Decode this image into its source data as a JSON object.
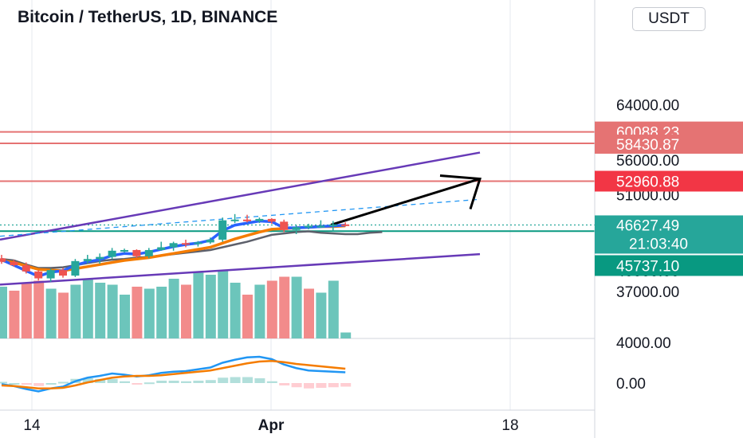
{
  "header": {
    "title": "Bitcoin / TetherUS, 1D, BINANCE"
  },
  "currency_button": "USDT",
  "colors": {
    "up": "#26a69a",
    "down": "#ef5350",
    "ema_fast": "#2962ff",
    "ema_slow": "#f57c00",
    "slow_line": "#5d606b",
    "channel": "#673ab7",
    "level": "#e57373",
    "level_strong": "#f23645",
    "price_line": "#089981"
  },
  "chart_data": {
    "type": "candlestick",
    "price_axis": {
      "ticks": [
        "64000.00",
        "56000.00",
        "51000.00",
        "40000.00",
        "37000.00"
      ],
      "tick_values": [
        64000,
        56000,
        51000,
        40000,
        37000
      ]
    },
    "volume_axis_tick": "4000.00",
    "macd_axis_tick": "0.00",
    "time_axis": {
      "ticks": [
        "14",
        "Apr",
        "18"
      ]
    },
    "price_tags": [
      {
        "label": "60088.23",
        "value": 60088.23,
        "style": "level"
      },
      {
        "label": "58430.87",
        "value": 58430.87,
        "style": "level"
      },
      {
        "label": "52960.88",
        "value": 52960.88,
        "style": "strong"
      },
      {
        "label": "46627.49",
        "value": 46627.49,
        "style": "current"
      },
      {
        "label": "21:03:40",
        "value": 46627.49,
        "style": "countdown"
      },
      {
        "label": "45737.10",
        "value": 45737.1,
        "style": "line"
      }
    ],
    "horizontal_levels": [
      60088.23,
      58430.87,
      52960.88,
      45737.1
    ],
    "candles": [
      {
        "o": 41800,
        "h": 42300,
        "l": 41000,
        "c": 41300
      },
      {
        "o": 41300,
        "h": 41600,
        "l": 40600,
        "c": 40800
      },
      {
        "o": 40800,
        "h": 41200,
        "l": 39600,
        "c": 39900
      },
      {
        "o": 39900,
        "h": 40100,
        "l": 38600,
        "c": 38900
      },
      {
        "o": 38900,
        "h": 40300,
        "l": 38400,
        "c": 40100
      },
      {
        "o": 40100,
        "h": 40400,
        "l": 39000,
        "c": 39300
      },
      {
        "o": 39300,
        "h": 41700,
        "l": 39100,
        "c": 41400
      },
      {
        "o": 41400,
        "h": 42300,
        "l": 41100,
        "c": 41700
      },
      {
        "o": 41700,
        "h": 42500,
        "l": 41000,
        "c": 42000
      },
      {
        "o": 42000,
        "h": 43300,
        "l": 41700,
        "c": 42900
      },
      {
        "o": 42900,
        "h": 43200,
        "l": 42600,
        "c": 43000
      },
      {
        "o": 43000,
        "h": 43100,
        "l": 41800,
        "c": 42100
      },
      {
        "o": 42100,
        "h": 43300,
        "l": 41800,
        "c": 43000
      },
      {
        "o": 43000,
        "h": 44200,
        "l": 42900,
        "c": 43400
      },
      {
        "o": 43400,
        "h": 44200,
        "l": 42900,
        "c": 44000
      },
      {
        "o": 44000,
        "h": 44500,
        "l": 43400,
        "c": 43900
      },
      {
        "o": 43900,
        "h": 44300,
        "l": 43500,
        "c": 44100
      },
      {
        "o": 44100,
        "h": 44800,
        "l": 43900,
        "c": 44500
      },
      {
        "o": 44500,
        "h": 47700,
        "l": 44200,
        "c": 47300
      },
      {
        "o": 47300,
        "h": 48200,
        "l": 46900,
        "c": 47400
      },
      {
        "o": 47400,
        "h": 48100,
        "l": 47000,
        "c": 47200
      },
      {
        "o": 47200,
        "h": 47700,
        "l": 46900,
        "c": 47500
      },
      {
        "o": 47500,
        "h": 47600,
        "l": 46800,
        "c": 47100
      },
      {
        "o": 47100,
        "h": 47400,
        "l": 45600,
        "c": 45900
      },
      {
        "o": 45900,
        "h": 46600,
        "l": 45300,
        "c": 46300
      },
      {
        "o": 46300,
        "h": 46800,
        "l": 46000,
        "c": 46500
      },
      {
        "o": 46500,
        "h": 47300,
        "l": 46200,
        "c": 46500
      },
      {
        "o": 46500,
        "h": 47200,
        "l": 45700,
        "c": 46700
      },
      {
        "o": 46700,
        "h": 47000,
        "l": 46400,
        "c": 46627.49
      }
    ],
    "volume": [
      2600,
      2400,
      2800,
      2900,
      2500,
      2300,
      2700,
      3000,
      2800,
      2700,
      2200,
      2600,
      2500,
      2600,
      3000,
      2700,
      3300,
      3200,
      3400,
      2800,
      2200,
      2700,
      2900,
      3100,
      3100,
      2500,
      2300,
      2900,
      300
    ],
    "volume_up": [
      true,
      false,
      false,
      false,
      true,
      false,
      true,
      true,
      true,
      true,
      true,
      false,
      true,
      true,
      true,
      false,
      true,
      true,
      true,
      true,
      false,
      true,
      false,
      false,
      true,
      false,
      true,
      true,
      true
    ],
    "ema_fast": [
      41600,
      40800,
      40000,
      39200,
      39800,
      40000,
      40800,
      41300,
      41600,
      42200,
      42500,
      42400,
      42700,
      43100,
      43500,
      43800,
      44000,
      44400,
      45800,
      46600,
      46900,
      47200,
      47100,
      46200,
      46200,
      46300,
      46400,
      46500,
      46600
    ],
    "ema_slow": [
      41500,
      41200,
      40700,
      40200,
      40100,
      40000,
      40300,
      40600,
      40900,
      41200,
      41500,
      41700,
      41900,
      42200,
      42500,
      42800,
      43100,
      43400,
      44000,
      44600,
      45100,
      45600,
      46000,
      46100,
      46200,
      46300,
      46400,
      46400,
      46500
    ],
    "slow_line": [
      41700,
      41500,
      40900,
      40400,
      40400,
      40500,
      40800,
      41100,
      41400,
      41600,
      41700,
      41900,
      42000,
      42200,
      42400,
      42600,
      42800,
      43000,
      43400,
      43800,
      44200,
      44700,
      45200,
      45400,
      45600,
      45700,
      45500,
      45400,
      45300,
      45300,
      45500,
      45600
    ],
    "macd": [
      -0.2,
      -0.5,
      -1.0,
      -1.4,
      -0.9,
      -0.6,
      0.3,
      0.9,
      1.2,
      1.6,
      1.4,
      1.1,
      1.3,
      1.7,
      1.9,
      2.0,
      2.3,
      2.6,
      3.4,
      3.9,
      4.3,
      4.4,
      4.0,
      3.1,
      2.5,
      2.1,
      2.0,
      1.9,
      1.8
    ],
    "macd_signal": [
      -0.4,
      -0.5,
      -0.7,
      -0.9,
      -0.9,
      -0.8,
      -0.4,
      0.1,
      0.5,
      0.9,
      1.1,
      1.2,
      1.2,
      1.3,
      1.5,
      1.7,
      1.9,
      2.1,
      2.5,
      2.9,
      3.3,
      3.6,
      3.7,
      3.5,
      3.2,
      3.0,
      2.8,
      2.6,
      2.4
    ],
    "channel": {
      "upper": {
        "from": 44500,
        "to": 57100
      },
      "lower": {
        "from": 38000,
        "to": 42400
      }
    },
    "dashed_trendline": {
      "from": 45000,
      "to": 50300
    },
    "arrow": {
      "from": 46627.49,
      "to": 53300
    }
  }
}
